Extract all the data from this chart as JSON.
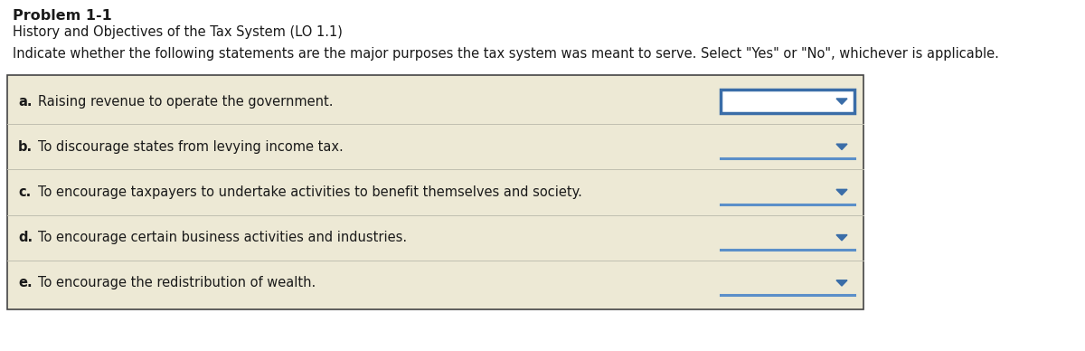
{
  "title": "Problem 1-1",
  "subtitle": "History and Objectives of the Tax System (LO 1.1)",
  "instruction": "Indicate whether the following statements are the major purposes the tax system was meant to serve. Select \"Yes\" or \"No\", whichever is applicable.",
  "items": [
    {
      "letter": "a.",
      "text": "Raising revenue to operate the government.",
      "selected": true
    },
    {
      "letter": "b.",
      "text": "To discourage states from levying income tax.",
      "selected": false
    },
    {
      "letter": "c.",
      "text": "To encourage taxpayers to undertake activities to benefit themselves and society.",
      "selected": false
    },
    {
      "letter": "d.",
      "text": "To encourage certain business activities and industries.",
      "selected": false
    },
    {
      "letter": "e.",
      "text": "To encourage the redistribution of wealth.",
      "selected": false
    }
  ],
  "bg_color": "#ede9d5",
  "box_border_color": "#444444",
  "dropdown_border_color_selected": "#3a6da8",
  "dropdown_arrow_color": "#3a6da8",
  "dropdown_bg_selected": "#ffffff",
  "dropdown_bg_normal": "#ede9d5",
  "separator_color": "#5b8fc9",
  "title_fontsize": 11.5,
  "subtitle_fontsize": 10.5,
  "instruction_fontsize": 10.5,
  "item_fontsize": 10.5,
  "fig_width": 12.0,
  "fig_height": 3.88,
  "dpi": 100
}
